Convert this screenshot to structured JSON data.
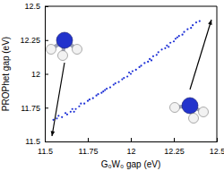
{
  "chart_data": {
    "type": "scatter",
    "x_label": "G₀W₀ gap (eV)",
    "y_label": "PROPhet gap (eV)",
    "x": [
      11.55,
      11.57,
      11.58,
      11.6,
      11.62,
      11.63,
      11.65,
      11.66,
      11.67,
      11.68,
      11.7,
      11.71,
      11.73,
      11.75,
      11.76,
      11.78,
      11.8,
      11.81,
      11.83,
      11.84,
      11.85,
      11.86,
      11.88,
      11.9,
      11.91,
      11.93,
      11.95,
      11.96,
      11.98,
      11.99,
      12.0,
      12.01,
      12.03,
      12.05,
      12.06,
      12.08,
      12.1,
      12.11,
      12.12,
      12.13,
      12.15,
      12.16,
      12.18,
      12.2,
      12.21,
      12.22,
      12.23,
      12.25,
      12.26,
      12.27,
      12.28,
      12.3,
      12.31,
      12.33,
      12.35,
      12.36,
      12.38,
      12.4
    ],
    "values": [
      11.66,
      11.67,
      11.69,
      11.68,
      11.71,
      11.7,
      11.72,
      11.74,
      11.72,
      11.74,
      11.76,
      11.78,
      11.78,
      11.8,
      11.81,
      11.82,
      11.84,
      11.85,
      11.86,
      11.87,
      11.88,
      11.89,
      11.9,
      11.92,
      11.93,
      11.94,
      11.96,
      11.97,
      11.98,
      12.01,
      12.0,
      12.02,
      12.03,
      12.05,
      12.06,
      12.08,
      12.09,
      12.11,
      12.1,
      12.13,
      12.14,
      12.16,
      12.18,
      12.19,
      12.21,
      12.2,
      12.23,
      12.24,
      12.26,
      12.27,
      12.28,
      12.29,
      12.31,
      12.33,
      12.34,
      12.36,
      12.38,
      12.39
    ],
    "color": "#1c2fd6",
    "marker": "circle",
    "xlim": [
      11.5,
      12.5
    ],
    "xticks": [
      11.5,
      11.75,
      12,
      12.25,
      12.5
    ],
    "ylim": [
      11.5,
      12.5
    ],
    "yticks": [
      11.5,
      11.75,
      12,
      12.25,
      12.5
    ],
    "grid": false
  }
}
